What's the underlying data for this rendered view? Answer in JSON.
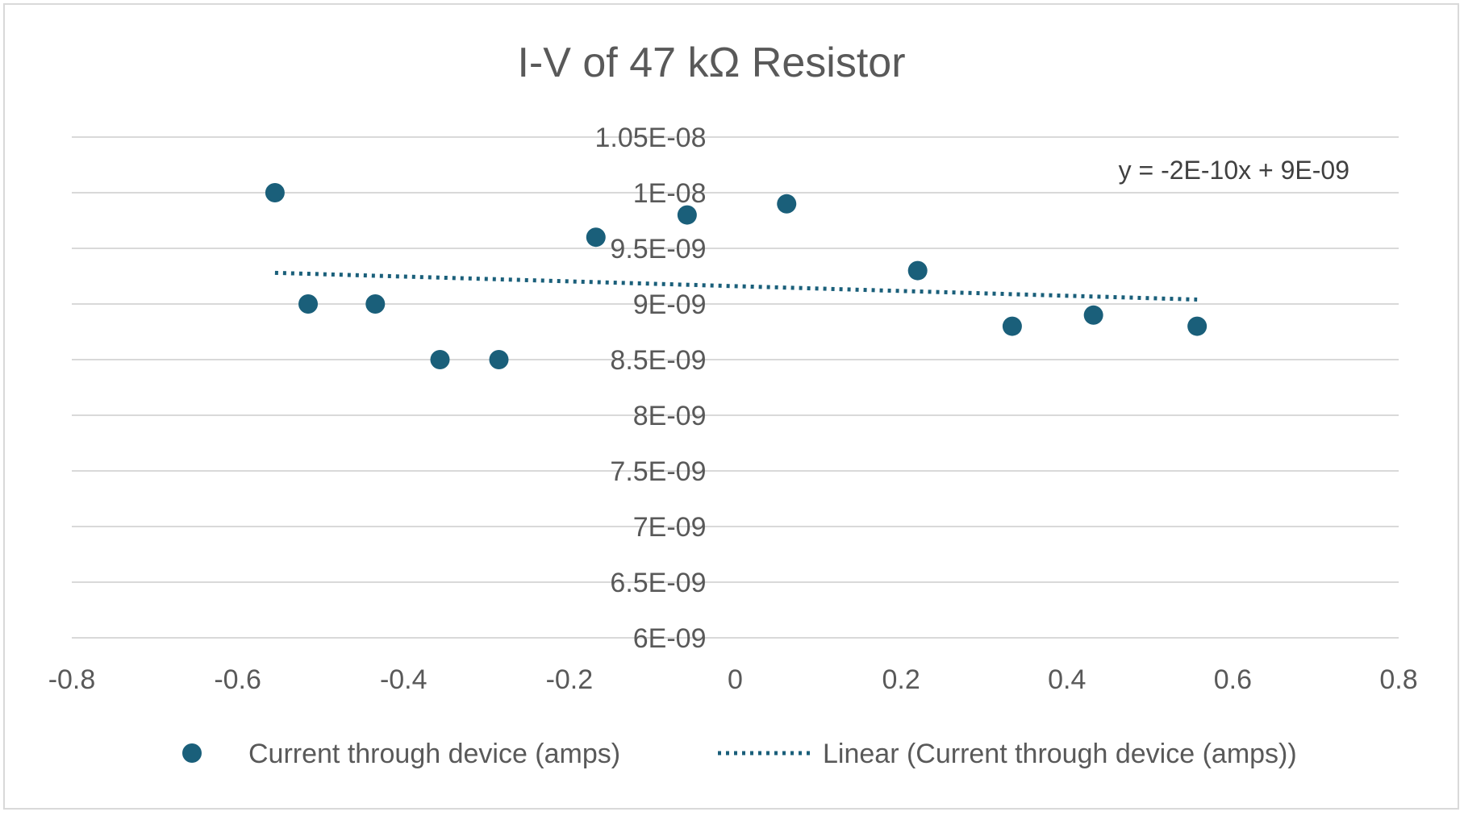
{
  "chart_data": {
    "type": "scatter",
    "title": "I-V of 47 kΩ Resistor",
    "xlabel": "",
    "ylabel": "",
    "xlim": [
      -0.8,
      0.8
    ],
    "ylim": [
      6e-09,
      1.05e-08
    ],
    "x_ticks": [
      -0.8,
      -0.6,
      -0.4,
      -0.2,
      0,
      0.2,
      0.4,
      0.6,
      0.8
    ],
    "x_tick_labels": [
      "-0.8",
      "-0.6",
      "-0.4",
      "-0.2",
      "0",
      "0.2",
      "0.4",
      "0.6",
      "0.8"
    ],
    "y_ticks": [
      6e-09,
      6.5e-09,
      7e-09,
      7.5e-09,
      8e-09,
      8.5e-09,
      9e-09,
      9.5e-09,
      1e-08,
      1.05e-08
    ],
    "y_tick_labels": [
      "6E-09",
      "6.5E-09",
      "7E-09",
      "7.5E-09",
      "8E-09",
      "8.5E-09",
      "9E-09",
      "9.5E-09",
      "1E-08",
      "1.05E-08"
    ],
    "grid": true,
    "legend_position": "bottom",
    "series": [
      {
        "name": "Current through device (amps)",
        "color": "#1a5f7a",
        "x": [
          -0.555,
          -0.515,
          -0.434,
          -0.356,
          -0.285,
          -0.168,
          -0.058,
          0.062,
          0.22,
          0.334,
          0.432,
          0.557
        ],
        "y": [
          1e-08,
          9e-09,
          9e-09,
          8.5e-09,
          8.5e-09,
          9.6e-09,
          9.8e-09,
          9.9e-09,
          9.3e-09,
          8.8e-09,
          8.9e-09,
          8.8e-09
        ]
      }
    ],
    "trendline": {
      "name": "Linear (Current through device (amps))",
      "type": "linear",
      "style": "dotted",
      "color": "#1a5f7a",
      "x_range": [
        -0.555,
        0.557
      ],
      "y_range": [
        9.28e-09,
        9.04e-09
      ],
      "equation": "y = -2E-10x + 9E-09"
    }
  }
}
